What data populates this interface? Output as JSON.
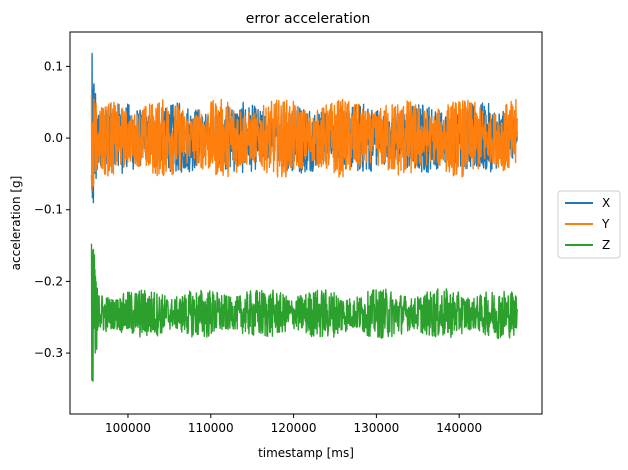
{
  "chart_data": {
    "type": "line",
    "title": "error acceleration",
    "xlabel": "timestamp [ms]",
    "ylabel": "acceleration [g]",
    "xlim": [
      93000,
      150000
    ],
    "ylim": [
      -0.385,
      0.148
    ],
    "xticks": [
      100000,
      110000,
      120000,
      130000,
      140000
    ],
    "xtick_labels": [
      "100000",
      "110000",
      "120000",
      "130000",
      "140000"
    ],
    "yticks": [
      -0.3,
      -0.2,
      -0.1,
      0.0,
      0.1
    ],
    "ytick_labels": [
      "−0.3",
      "−0.2",
      "−0.1",
      "0.0",
      "0.1"
    ],
    "grid": false,
    "legend_position": "center-right-outside",
    "x_range_of_data": [
      95600,
      147000
    ],
    "series": [
      {
        "name": "X",
        "color": "#1f77b4",
        "steady_mean": 0.0,
        "steady_band": [
          -0.045,
          0.055
        ],
        "transient_peak": 0.125,
        "transient_min": -0.1
      },
      {
        "name": "Y",
        "color": "#ff7f0e",
        "steady_mean": 0.0,
        "steady_band": [
          -0.055,
          0.055
        ],
        "transient_peak": 0.07,
        "transient_min": -0.1
      },
      {
        "name": "Z",
        "color": "#2ca02c",
        "steady_mean": -0.245,
        "steady_band": [
          -0.28,
          -0.21
        ],
        "transient_peak": -0.11,
        "transient_min": -0.365
      }
    ]
  }
}
